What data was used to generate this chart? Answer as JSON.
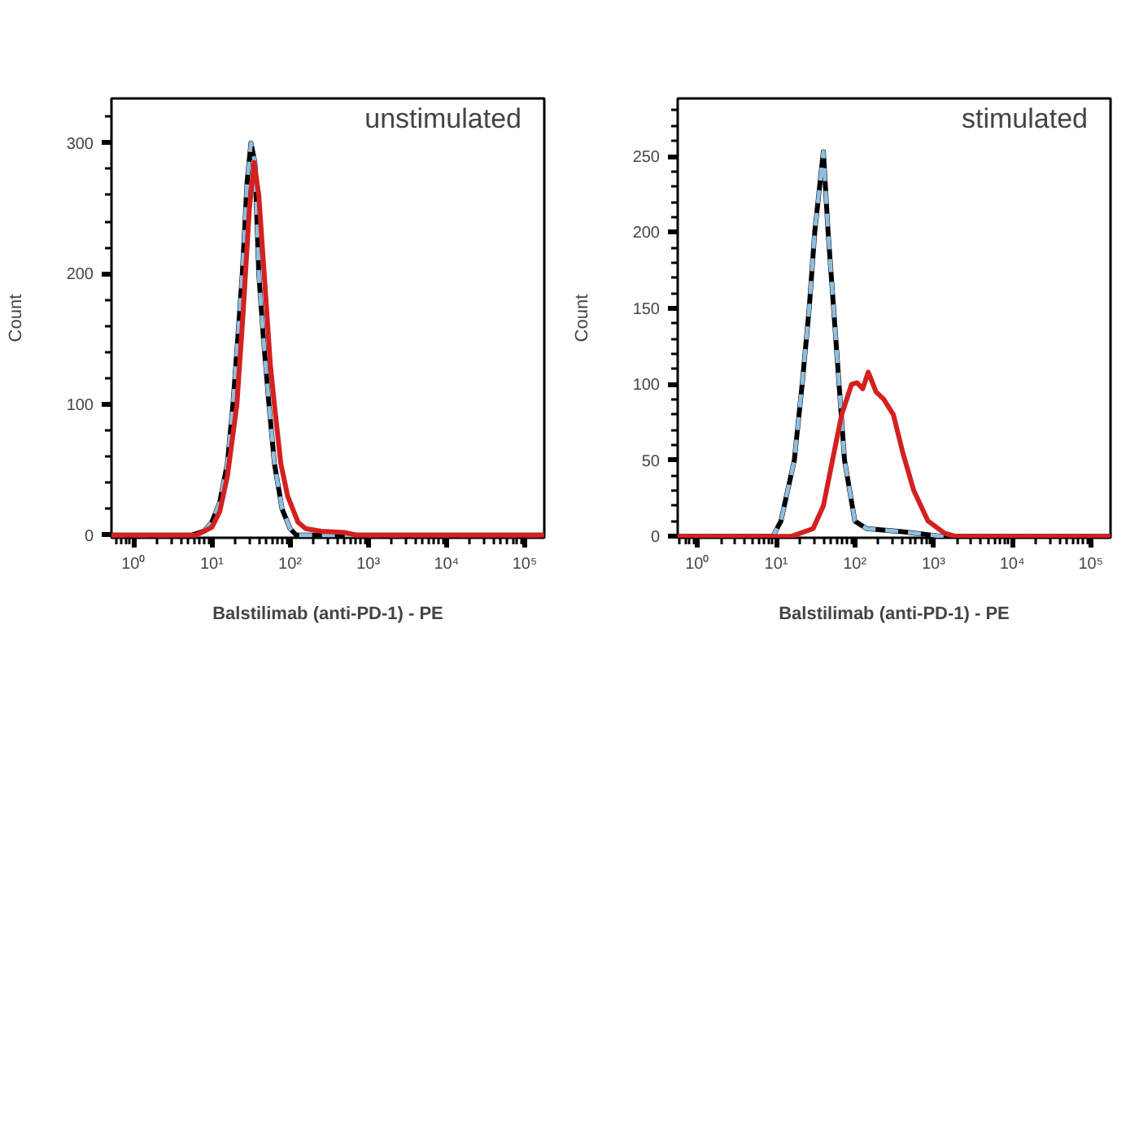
{
  "chart_data": [
    {
      "type": "line",
      "xlabel": "Balstilimab (anti-PD-1) - PE",
      "ylabel": "Count",
      "annotations": [
        "unstimulated"
      ],
      "log": "x",
      "grid": false,
      "marker": "none",
      "xlim": [
        0.52,
        178000
      ],
      "ylim": [
        -2,
        334
      ],
      "xticks": [
        {
          "value": 1,
          "label": "10⁰"
        },
        {
          "value": 10,
          "label": "10¹"
        },
        {
          "value": 100,
          "label": "10²"
        },
        {
          "value": 1000,
          "label": "10³"
        },
        {
          "value": 10000,
          "label": "10⁴"
        },
        {
          "value": 100000,
          "label": "10⁵"
        }
      ],
      "yticks": [
        0,
        100,
        200,
        300
      ],
      "series": [
        {
          "color": "#000000",
          "line_style": "solid",
          "x": [
            0.52,
            5.5,
            7.9,
            10,
            12.6,
            15.8,
            18.6,
            21.4,
            24.5,
            28.2,
            31.6,
            35.5,
            39.8,
            45.7,
            53.7,
            63,
            79,
            100,
            120,
            178000
          ],
          "values": [
            0,
            0,
            3,
            10,
            25,
            55,
            100,
            150,
            200,
            270,
            300,
            285,
            200,
            150,
            100,
            55,
            20,
            5,
            0,
            0
          ]
        },
        {
          "color": "#8fbfe0",
          "line_style": "dashed",
          "x": [
            0.52,
            5.5,
            7.9,
            10,
            12.6,
            15.8,
            18.6,
            21.4,
            24.5,
            28.2,
            31.6,
            35.5,
            39.8,
            45.7,
            53.7,
            63,
            79,
            100,
            120,
            178000
          ],
          "values": [
            0,
            0,
            3,
            10,
            25,
            55,
            100,
            150,
            200,
            270,
            300,
            285,
            200,
            150,
            100,
            55,
            20,
            5,
            0,
            0
          ]
        },
        {
          "color": "#d42020",
          "line_style": "solid",
          "x": [
            0.52,
            6.3,
            10,
            12.6,
            15.8,
            20.9,
            25.1,
            30.2,
            34.7,
            39.8,
            47.9,
            56,
            63,
            76,
            93,
            126,
            158,
            251,
            501,
            708,
            178000
          ],
          "values": [
            0,
            0,
            6,
            18,
            45,
            100,
            170,
            250,
            285,
            260,
            190,
            130,
            100,
            55,
            30,
            10,
            5,
            3,
            2,
            0,
            0
          ]
        }
      ]
    },
    {
      "type": "line",
      "xlabel": "Balstilimab (anti-PD-1) - PE",
      "ylabel": "Count",
      "annotations": [
        "stimulated"
      ],
      "log": "x",
      "grid": false,
      "marker": "none",
      "xlim": [
        0.56,
        178000
      ],
      "ylim": [
        -1,
        288
      ],
      "xticks": [
        {
          "value": 1,
          "label": "10⁰"
        },
        {
          "value": 10,
          "label": "10¹"
        },
        {
          "value": 100,
          "label": "10²"
        },
        {
          "value": 1000,
          "label": "10³"
        },
        {
          "value": 10000,
          "label": "10⁴"
        },
        {
          "value": 100000,
          "label": "10⁵"
        }
      ],
      "yticks": [
        0,
        50,
        100,
        150,
        200,
        250
      ],
      "series": [
        {
          "color": "#000000",
          "line_style": "solid",
          "x": [
            0.56,
            6.3,
            9.1,
            11.5,
            17,
            21.4,
            26.3,
            30.9,
            39.8,
            45.7,
            53.7,
            63,
            74,
            100,
            141,
            398,
            1260,
            178000
          ],
          "values": [
            0,
            0,
            0,
            10,
            50,
            100,
            150,
            200,
            253,
            200,
            150,
            100,
            50,
            10,
            5,
            3,
            0,
            0
          ]
        },
        {
          "color": "#8fbfe0",
          "line_style": "dashed",
          "x": [
            0.56,
            6.3,
            9.1,
            11.5,
            17,
            21.4,
            26.3,
            30.9,
            39.8,
            45.7,
            53.7,
            63,
            74,
            100,
            141,
            398,
            1260,
            178000
          ],
          "values": [
            0,
            0,
            0,
            10,
            50,
            100,
            150,
            200,
            253,
            200,
            150,
            100,
            50,
            10,
            5,
            3,
            0,
            0
          ]
        },
        {
          "color": "#d42020",
          "line_style": "solid",
          "x": [
            0.56,
            15.8,
            29.5,
            39.8,
            52,
            68,
            91,
            107,
            126,
            148,
            186,
            234,
            309,
            407,
            562,
            851,
            1380,
            1900,
            178000
          ],
          "values": [
            0,
            0,
            5,
            20,
            50,
            80,
            100,
            101,
            97,
            108,
            95,
            90,
            80,
            55,
            30,
            10,
            2,
            0,
            0
          ]
        }
      ]
    }
  ]
}
